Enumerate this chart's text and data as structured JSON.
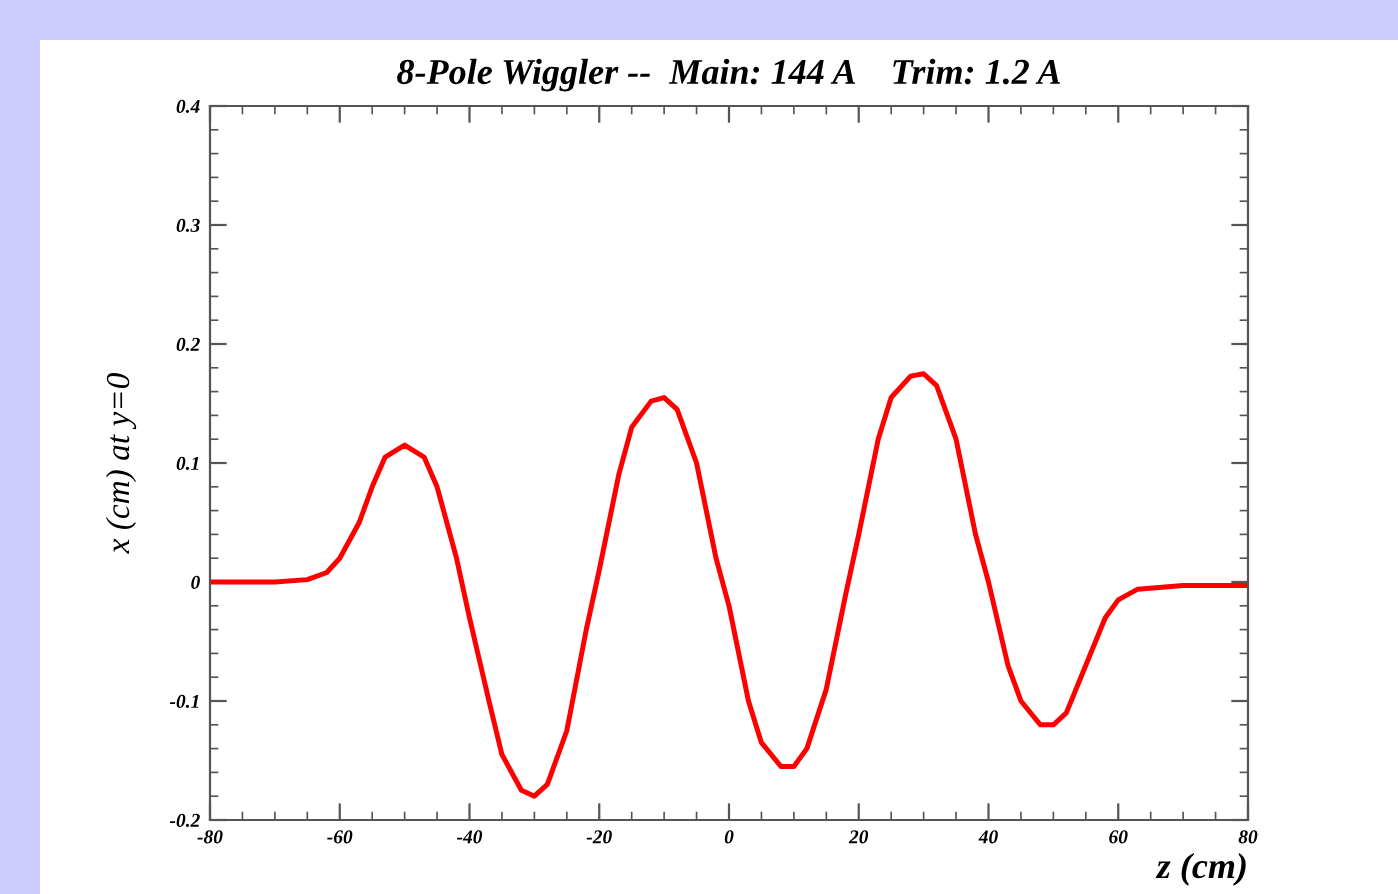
{
  "chart_data": {
    "type": "line",
    "title": "8-Pole Wiggler --  Main: 144 A    Trim: 1.2 A",
    "xlabel": "z (cm)",
    "ylabel": "x (cm) at y=0",
    "xlim": [
      -80,
      80
    ],
    "xticks": [
      -80,
      -60,
      -40,
      -20,
      0,
      20,
      40,
      60,
      80
    ],
    "ylim": [
      -0.2,
      0.4
    ],
    "yticks": [
      -0.2,
      -0.1,
      0,
      0.1,
      0.2,
      0.3,
      0.4
    ],
    "grid": false,
    "legend": false,
    "series": [
      {
        "color": "#ff0000",
        "x": [
          -80,
          -70,
          -65,
          -62,
          -60,
          -57,
          -55,
          -53,
          -50,
          -47,
          -45,
          -42,
          -40,
          -37,
          -35,
          -32,
          -30,
          -28,
          -25,
          -22,
          -20,
          -17,
          -15,
          -12,
          -10,
          -8,
          -5,
          -2,
          0,
          3,
          5,
          8,
          10,
          12,
          15,
          18,
          20,
          23,
          25,
          28,
          30,
          32,
          35,
          38,
          40,
          43,
          45,
          48,
          50,
          52,
          55,
          58,
          60,
          63,
          70,
          80
        ],
        "values": [
          0,
          0,
          0.002,
          0.008,
          0.02,
          0.05,
          0.08,
          0.105,
          0.115,
          0.105,
          0.08,
          0.02,
          -0.03,
          -0.1,
          -0.145,
          -0.175,
          -0.18,
          -0.17,
          -0.125,
          -0.04,
          0.01,
          0.09,
          0.13,
          0.152,
          0.155,
          0.145,
          0.1,
          0.02,
          -0.02,
          -0.1,
          -0.135,
          -0.155,
          -0.155,
          -0.14,
          -0.09,
          -0.01,
          0.04,
          0.12,
          0.155,
          0.173,
          0.175,
          0.165,
          0.12,
          0.04,
          0,
          -0.07,
          -0.1,
          -0.12,
          -0.12,
          -0.11,
          -0.07,
          -0.03,
          -0.015,
          -0.006,
          -0.003,
          -0.003
        ]
      }
    ]
  }
}
